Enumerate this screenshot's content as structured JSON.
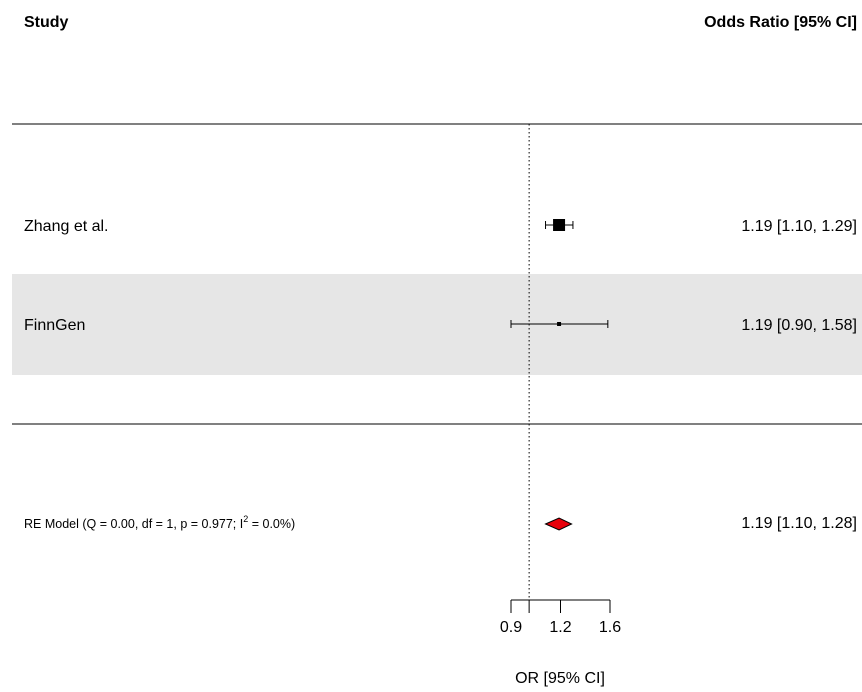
{
  "header": {
    "study_label": "Study",
    "estimate_label": "Odds Ratio [95% CI]"
  },
  "chart_data": {
    "type": "forest",
    "xlabel": "OR [95% CI]",
    "x_ticks": [
      0.9,
      1.2,
      1.6
    ],
    "x_tick_labels": [
      "0.9",
      "1.2",
      "1.6"
    ],
    "x_range": [
      0.9,
      1.6
    ],
    "x_scale": "log",
    "reference_line": 1.0,
    "studies": [
      {
        "name": "Zhang et al.",
        "estimate": 1.19,
        "lower": 1.1,
        "upper": 1.29,
        "text": "1.19 [1.10, 1.29]",
        "weight": "large",
        "shaded": false
      },
      {
        "name": "FinnGen",
        "estimate": 1.19,
        "lower": 0.9,
        "upper": 1.58,
        "text": "1.19 [0.90, 1.58]",
        "weight": "small",
        "shaded": true
      }
    ],
    "summary": {
      "label_main": "RE Model (Q = 0.00, df = 1, p = 0.977; I",
      "label_sup": "2",
      "label_end": " = 0.0%)",
      "estimate": 1.19,
      "lower": 1.1,
      "upper": 1.28,
      "text": "1.19 [1.10, 1.28]",
      "color": "#e8000b"
    },
    "colors": {
      "shade": "#e6e6e6",
      "line": "#000000"
    }
  }
}
